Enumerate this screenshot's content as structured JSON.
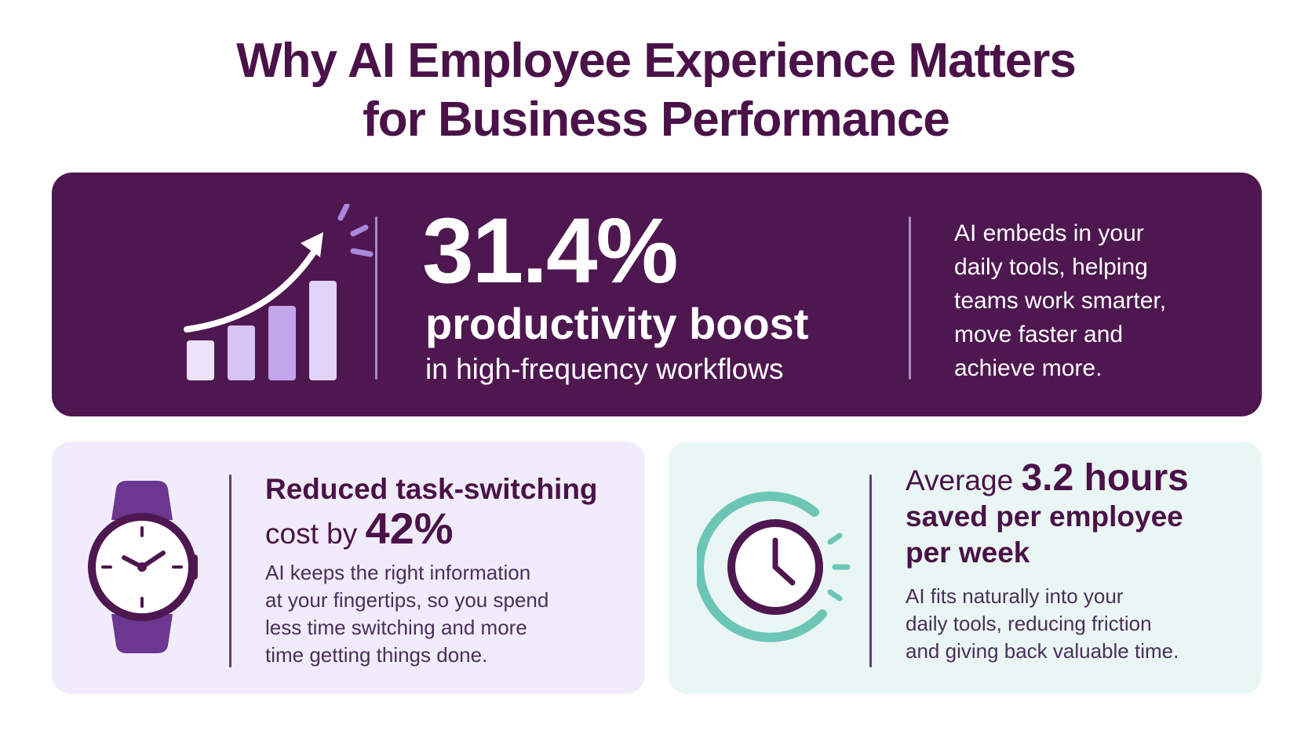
{
  "title": {
    "line1": "Why AI Employee Experience Matters",
    "line2": "for Business Performance"
  },
  "productivity": {
    "stat": "31.4%",
    "label": "productivity boost",
    "sublabel": "in high-frequency workflows",
    "description": [
      "AI embeds in your",
      "daily tools, helping",
      "teams work smarter,",
      "move faster and",
      "achieve more."
    ],
    "icon": "growth-chart-icon"
  },
  "task_switching": {
    "heading_line1": "Reduced task-switching",
    "heading_prefix": "cost by",
    "stat": "42%",
    "description": [
      "AI keeps the right information",
      "at your fingertips, so you spend",
      "less time switching and more",
      "time getting things done."
    ],
    "icon": "wristwatch-icon"
  },
  "time_saved": {
    "heading_prefix": "Average",
    "stat": "3.2 hours",
    "heading_line2": "saved per employee",
    "heading_line3": "per week",
    "description": [
      "AI fits naturally into your",
      "daily tools, reducing friction",
      "and giving back valuable time."
    ],
    "icon": "clock-icon"
  },
  "colors": {
    "primary_purple": "#4e1750",
    "lavender_card": "#f1ecfb",
    "mint_card": "#eaf6f4",
    "teal_accent": "#6cc6b6",
    "watch_purple": "#6b3790"
  }
}
